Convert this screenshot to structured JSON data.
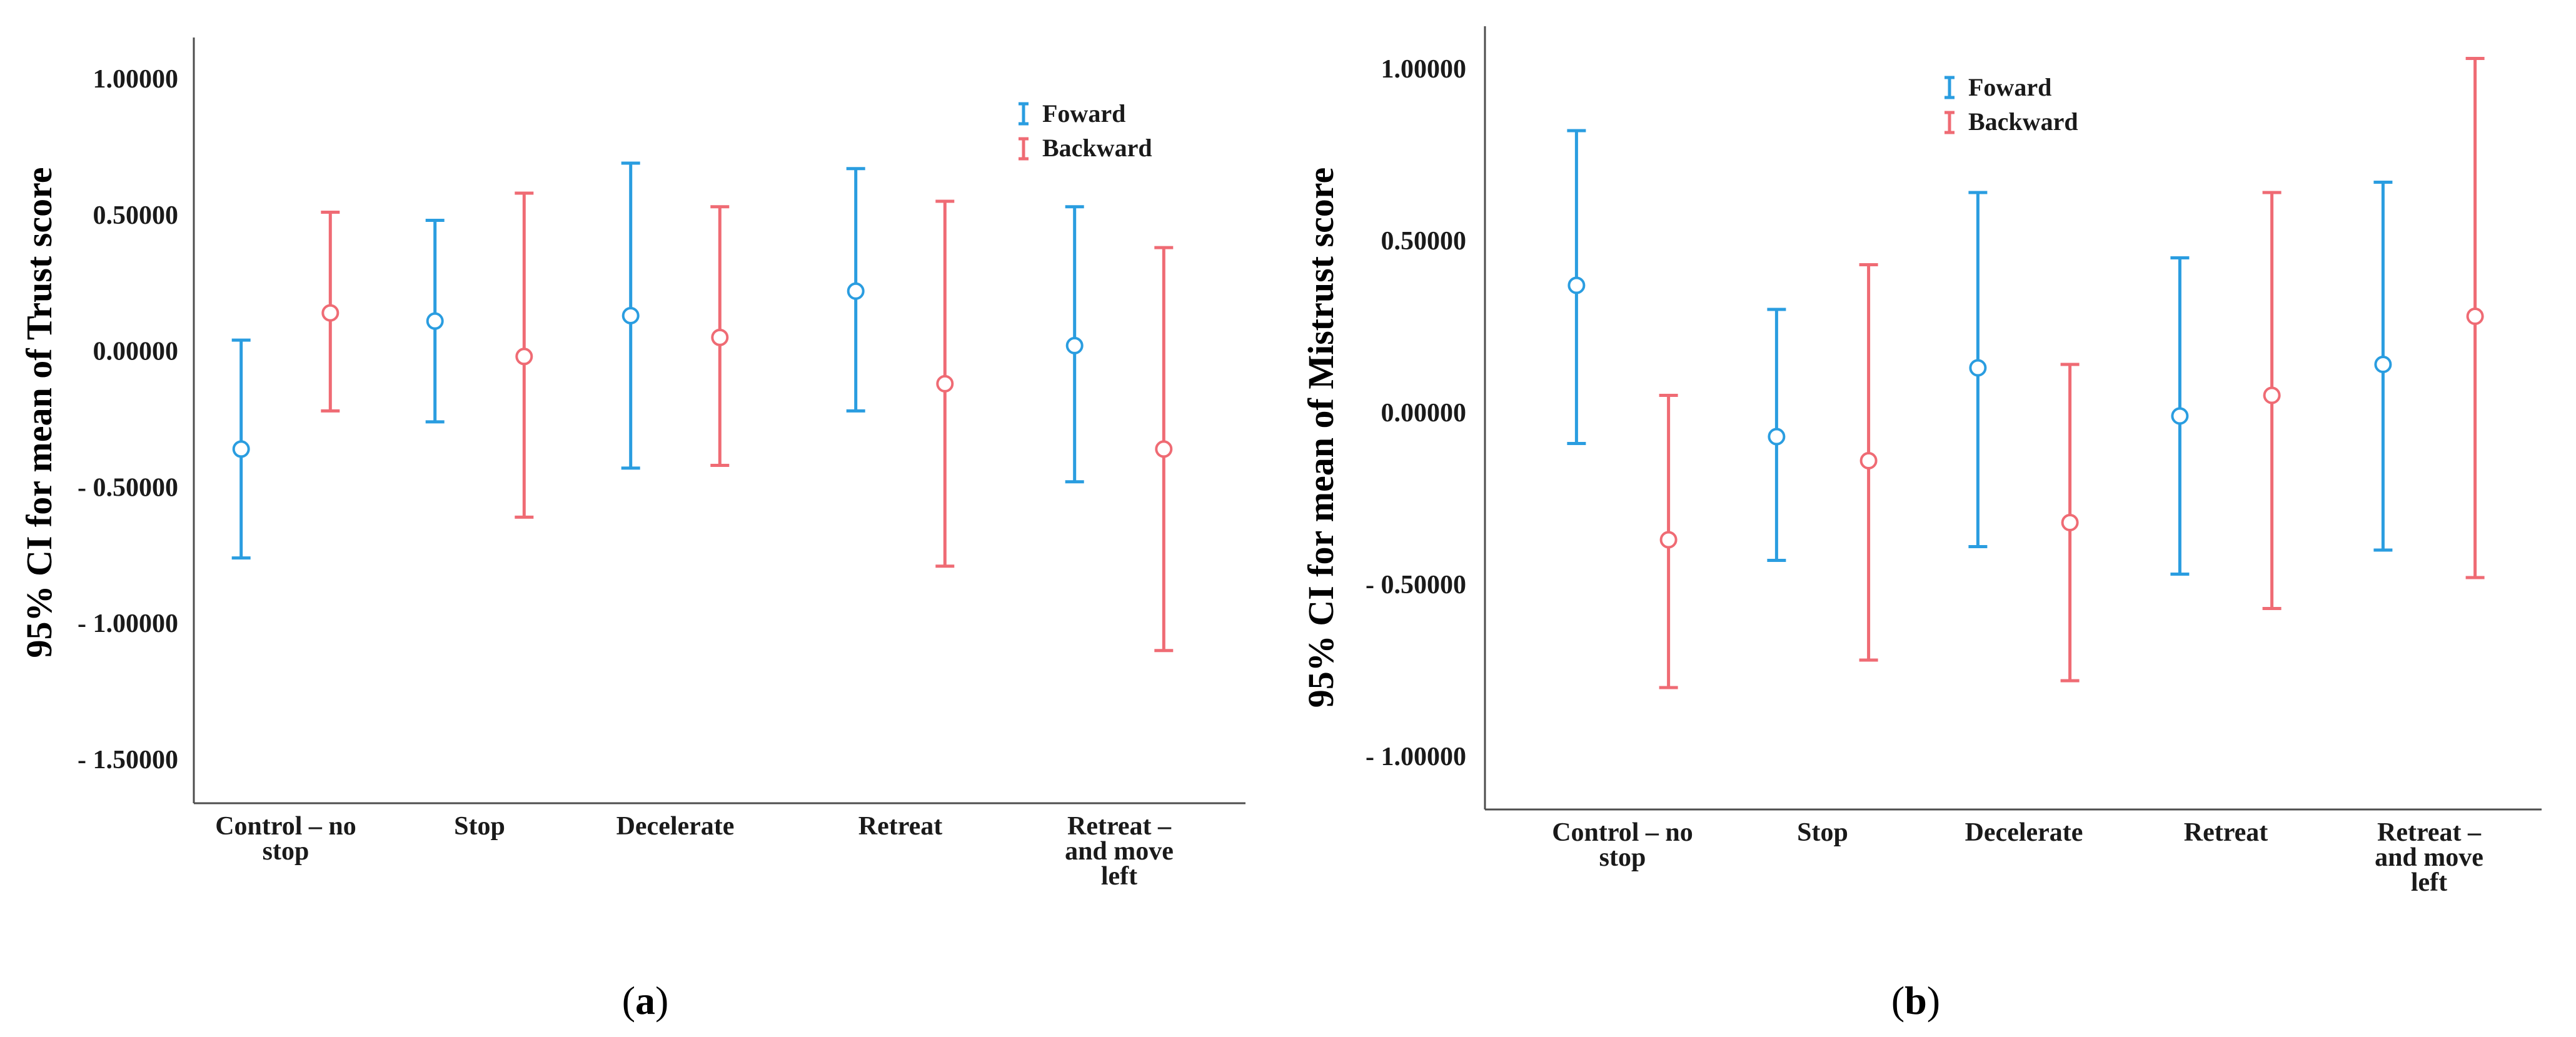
{
  "colors": {
    "series_a": "#2a9de0",
    "series_b": "#ef6b74",
    "axis": "#4d4d4d",
    "text": "#1a1a1a"
  },
  "panels": [
    {
      "open": "(",
      "letter": "a",
      "close": ")"
    },
    {
      "open": "(",
      "letter": "b",
      "close": ")"
    }
  ],
  "chart_data": [
    {
      "type": "errorbar",
      "title": "",
      "ylabel": "95% CI for mean of Trust score",
      "xlabel": "",
      "ylim": [
        -1.65,
        1.15
      ],
      "yticks": [
        1.0,
        0.5,
        0.0,
        -0.5,
        -1.0,
        -1.5
      ],
      "ytick_labels": [
        "1.00000",
        "0.50000",
        "0.00000",
        "- 0.50000",
        "- 1.00000",
        "- 1.50000"
      ],
      "categories": [
        [
          "Control – no",
          "stop"
        ],
        [
          "Stop"
        ],
        [
          "Decelerate"
        ],
        [
          "Retreat"
        ],
        [
          "Retreat –",
          "and move",
          "left"
        ]
      ],
      "legend": {
        "position": "top-right",
        "entries": [
          "Foward",
          "Backward"
        ]
      },
      "series": [
        {
          "name": "Foward",
          "color": "#2a9de0",
          "mean": [
            -0.36,
            0.11,
            0.13,
            0.22,
            0.02
          ],
          "lower": [
            -0.76,
            -0.26,
            -0.43,
            -0.22,
            -0.48
          ],
          "upper": [
            0.04,
            0.48,
            0.69,
            0.67,
            0.53
          ]
        },
        {
          "name": "Backward",
          "color": "#ef6b74",
          "mean": [
            0.14,
            -0.02,
            0.05,
            -0.12,
            -0.36
          ],
          "lower": [
            -0.22,
            -0.61,
            -0.42,
            -0.79,
            -1.1
          ],
          "upper": [
            0.51,
            0.58,
            0.53,
            0.55,
            0.38
          ]
        }
      ]
    },
    {
      "type": "errorbar",
      "title": "",
      "ylabel": "95% CI for mean of Mistrust score",
      "xlabel": "",
      "ylim": [
        -1.15,
        1.05
      ],
      "yticks": [
        1.0,
        0.5,
        0.0,
        -0.5,
        -1.0
      ],
      "ytick_labels": [
        "1.00000",
        "0.50000",
        "0.00000",
        "- 0.50000",
        "- 1.00000"
      ],
      "categories": [
        [
          "Control – no",
          "stop"
        ],
        [
          "Stop"
        ],
        [
          "Decelerate"
        ],
        [
          "Retreat"
        ],
        [
          "Retreat –",
          "and move",
          "left"
        ]
      ],
      "legend": {
        "position": "top-center",
        "entries": [
          "Foward",
          "Backward"
        ]
      },
      "series": [
        {
          "name": "Foward",
          "color": "#2a9de0",
          "mean": [
            0.37,
            -0.07,
            0.13,
            -0.01,
            0.14
          ],
          "lower": [
            -0.09,
            -0.43,
            -0.39,
            -0.47,
            -0.4
          ],
          "upper": [
            0.82,
            0.3,
            0.64,
            0.45,
            0.67
          ]
        },
        {
          "name": "Backward",
          "color": "#ef6b74",
          "mean": [
            -0.37,
            -0.14,
            -0.32,
            0.05,
            0.28
          ],
          "lower": [
            -0.8,
            -0.72,
            -0.78,
            -0.57,
            -0.48
          ],
          "upper": [
            0.05,
            0.43,
            0.14,
            0.64,
            1.03
          ]
        }
      ]
    }
  ]
}
